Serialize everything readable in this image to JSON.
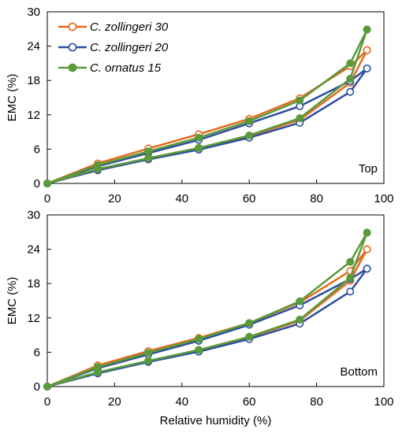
{
  "chart_data": [
    {
      "type": "line",
      "panel_label": "Top",
      "ylabel": "EMC (%)",
      "xlim": [
        0,
        100
      ],
      "ylim": [
        0,
        30
      ],
      "xticks": [
        0,
        20,
        40,
        60,
        80,
        100
      ],
      "yticks": [
        0,
        6,
        12,
        18,
        24,
        30
      ],
      "grid": false,
      "legend_position": "top-left",
      "series": [
        {
          "name": "C. zollingeri 30",
          "color": "#E46A1F",
          "marker": "open-circle",
          "adsorption": {
            "x": [
              0,
              15,
              30,
              45,
              60,
              75,
              90,
              95
            ],
            "y": [
              0,
              2.4,
              4.4,
              6.2,
              8.3,
              11.1,
              17.6,
              23.3
            ]
          },
          "desorption": {
            "x": [
              0,
              15,
              30,
              45,
              60,
              75,
              90,
              95
            ],
            "y": [
              0,
              3.5,
              6.1,
              8.6,
              11.3,
              14.9,
              20.5,
              23.3
            ]
          }
        },
        {
          "name": "C. zollingeri 20",
          "color": "#2E4EA0",
          "marker": "open-circle",
          "adsorption": {
            "x": [
              0,
              15,
              30,
              45,
              60,
              75,
              90,
              95
            ],
            "y": [
              0,
              2.3,
              4.2,
              5.9,
              8.0,
              10.6,
              16.0,
              20.1
            ]
          },
          "desorption": {
            "x": [
              0,
              15,
              30,
              45,
              60,
              75,
              90,
              95
            ],
            "y": [
              0,
              3.0,
              5.3,
              7.6,
              10.5,
              13.5,
              17.9,
              20.1
            ]
          }
        },
        {
          "name": "C. ornatus 15",
          "color": "#5A9A3A",
          "marker": "filled-circle",
          "adsorption": {
            "x": [
              0,
              15,
              30,
              45,
              60,
              75,
              90,
              95
            ],
            "y": [
              0,
              2.5,
              4.4,
              6.2,
              8.4,
              11.4,
              18.3,
              26.9
            ]
          },
          "desorption": {
            "x": [
              0,
              15,
              30,
              45,
              60,
              75,
              90,
              95
            ],
            "y": [
              0,
              3.2,
              5.6,
              8.0,
              10.9,
              14.5,
              21.0,
              26.9
            ]
          }
        }
      ]
    },
    {
      "type": "line",
      "panel_label": "Bottom",
      "xlabel": "Relative humidity (%)",
      "ylabel": "EMC (%)",
      "xlim": [
        0,
        100
      ],
      "ylim": [
        0,
        30
      ],
      "xticks": [
        0,
        20,
        40,
        60,
        80,
        100
      ],
      "yticks": [
        0,
        6,
        12,
        18,
        24,
        30
      ],
      "grid": false,
      "series": [
        {
          "name": "C. zollingeri 30",
          "color": "#E46A1F",
          "marker": "open-circle",
          "adsorption": {
            "x": [
              0,
              15,
              30,
              45,
              60,
              75,
              90,
              95
            ],
            "y": [
              0,
              2.4,
              4.4,
              6.4,
              8.6,
              11.5,
              18.5,
              24.0
            ]
          },
          "desorption": {
            "x": [
              0,
              15,
              30,
              45,
              60,
              75,
              90,
              95
            ],
            "y": [
              0,
              3.7,
              6.2,
              8.5,
              11.1,
              14.7,
              20.2,
              24.0
            ]
          }
        },
        {
          "name": "C. zollingeri 20",
          "color": "#2E4EA0",
          "marker": "open-circle",
          "adsorption": {
            "x": [
              0,
              15,
              30,
              45,
              60,
              75,
              90,
              95
            ],
            "y": [
              0,
              2.3,
              4.3,
              6.1,
              8.3,
              11.0,
              16.6,
              20.6
            ]
          },
          "desorption": {
            "x": [
              0,
              15,
              30,
              45,
              60,
              75,
              90,
              95
            ],
            "y": [
              0,
              3.2,
              5.6,
              8.0,
              10.8,
              14.2,
              18.8,
              20.6
            ]
          }
        },
        {
          "name": "C. ornatus 15",
          "color": "#5A9A3A",
          "marker": "filled-circle",
          "adsorption": {
            "x": [
              0,
              15,
              30,
              45,
              60,
              75,
              90,
              95
            ],
            "y": [
              0,
              2.5,
              4.5,
              6.4,
              8.7,
              11.7,
              19.0,
              26.9
            ]
          },
          "desorption": {
            "x": [
              0,
              15,
              30,
              45,
              60,
              75,
              90,
              95
            ],
            "y": [
              0,
              3.4,
              5.9,
              8.3,
              11.1,
              14.9,
              21.8,
              26.9
            ]
          }
        }
      ]
    }
  ]
}
